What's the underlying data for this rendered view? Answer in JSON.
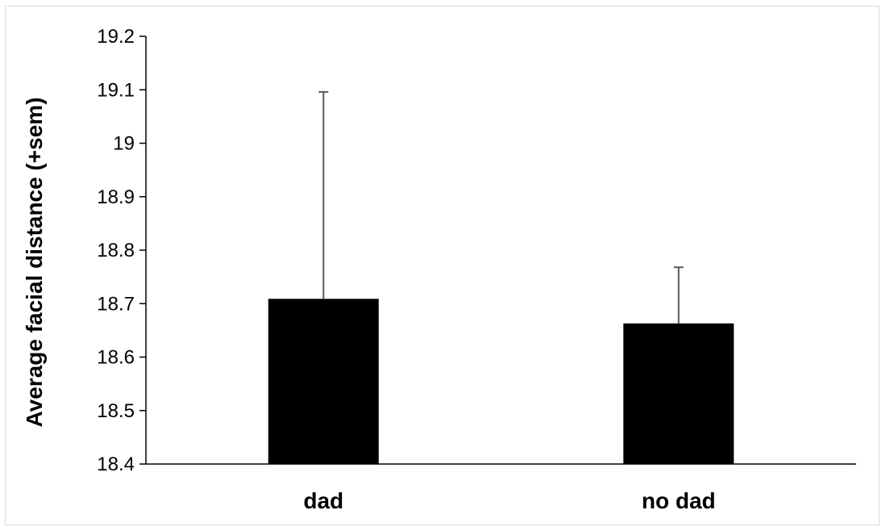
{
  "chart_data": {
    "type": "bar",
    "title": "",
    "xlabel": "",
    "ylabel": "Average facial distance (+sem)",
    "categories": [
      "dad",
      "no dad"
    ],
    "values": [
      18.709,
      18.663
    ],
    "error_upper": [
      19.096,
      18.768
    ],
    "ylim": [
      18.4,
      19.2
    ],
    "yticks": [
      "18.4",
      "18.5",
      "18.6",
      "18.7",
      "18.8",
      "18.9",
      "19",
      "19.1",
      "19.2"
    ],
    "grid": false,
    "legend": "none",
    "colors": {
      "bar": "#000000",
      "error_bar": "#595959",
      "axis": "#000000",
      "tick": "#000000"
    }
  }
}
